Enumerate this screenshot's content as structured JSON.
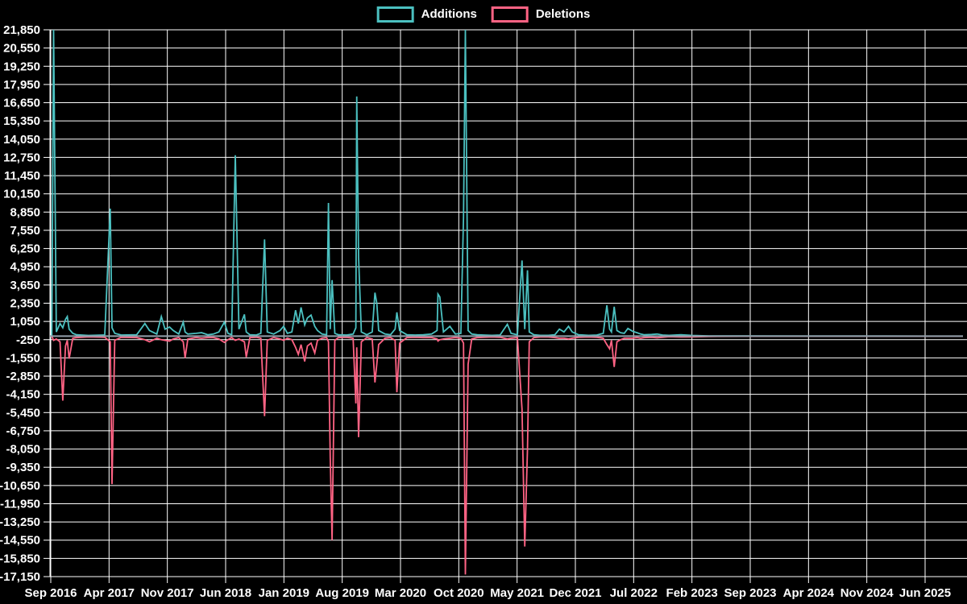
{
  "chart_data": {
    "type": "line",
    "legend": {
      "position": "top",
      "items": [
        {
          "label": "Additions",
          "color": "#4bc0c0"
        },
        {
          "label": "Deletions",
          "color": "#ff6384"
        }
      ]
    },
    "colors": {
      "background": "#000000",
      "grid": "#ffffff",
      "text": "#ffffff",
      "additions": "#4bc0c0",
      "deletions": "#ff6384",
      "zero_overlap": "#93a0ab"
    },
    "y_axis": {
      "min": -17150,
      "max": 21850,
      "step": 1300,
      "tick_labels": [
        "21,850",
        "20,550",
        "19,250",
        "17,950",
        "16,650",
        "15,350",
        "14,050",
        "12,750",
        "11,450",
        "10,150",
        "8,850",
        "7,550",
        "6,250",
        "4,950",
        "3,650",
        "2,350",
        "1,050",
        "-250",
        "-1,550",
        "-2,850",
        "-4,150",
        "-5,450",
        "-6,750",
        "-8,050",
        "-9,350",
        "-10,650",
        "-11,950",
        "-13,250",
        "-14,550",
        "-15,850",
        "-17,150"
      ]
    },
    "x_axis": {
      "tick_labels": [
        "Sep 2016",
        "Apr 2017",
        "Nov 2017",
        "Jun 2018",
        "Jan 2019",
        "Aug 2019",
        "Mar 2020",
        "Oct 2020",
        "May 2021",
        "Dec 2021",
        "Jul 2022",
        "Feb 2023",
        "Sep 2023",
        "Apr 2024",
        "Nov 2024",
        "Jun 2025"
      ]
    },
    "grid": true,
    "points_format": [
      "x_fraction_of_time_axis",
      "additions",
      "deletions"
    ],
    "points": [
      [
        0.002,
        0,
        0
      ],
      [
        0.004,
        21850,
        -300
      ],
      [
        0.007,
        300,
        -200
      ],
      [
        0.011,
        900,
        -400
      ],
      [
        0.014,
        600,
        -4600
      ],
      [
        0.017,
        1200,
        -700
      ],
      [
        0.019,
        1400,
        -300
      ],
      [
        0.021,
        500,
        -1600
      ],
      [
        0.025,
        200,
        -150
      ],
      [
        0.029,
        100,
        -100
      ],
      [
        0.042,
        50,
        -50
      ],
      [
        0.06,
        80,
        -80
      ],
      [
        0.066,
        9100,
        -400
      ],
      [
        0.068,
        600,
        -10550
      ],
      [
        0.071,
        200,
        -300
      ],
      [
        0.078,
        80,
        -80
      ],
      [
        0.095,
        100,
        -100
      ],
      [
        0.104,
        900,
        -250
      ],
      [
        0.109,
        400,
        -400
      ],
      [
        0.117,
        150,
        -150
      ],
      [
        0.122,
        1400,
        -250
      ],
      [
        0.126,
        500,
        -300
      ],
      [
        0.131,
        650,
        -350
      ],
      [
        0.135,
        400,
        -200
      ],
      [
        0.141,
        150,
        -100
      ],
      [
        0.146,
        1000,
        -400
      ],
      [
        0.148,
        300,
        -1550
      ],
      [
        0.151,
        150,
        -200
      ],
      [
        0.16,
        200,
        -100
      ],
      [
        0.166,
        250,
        -150
      ],
      [
        0.173,
        100,
        -100
      ],
      [
        0.179,
        150,
        -100
      ],
      [
        0.185,
        300,
        -200
      ],
      [
        0.191,
        1000,
        -450
      ],
      [
        0.195,
        200,
        -250
      ],
      [
        0.199,
        100,
        -100
      ],
      [
        0.203,
        12900,
        -300
      ],
      [
        0.207,
        500,
        -200
      ],
      [
        0.213,
        1550,
        -400
      ],
      [
        0.215,
        300,
        -1500
      ],
      [
        0.219,
        100,
        -100
      ],
      [
        0.226,
        80,
        -80
      ],
      [
        0.231,
        200,
        -150
      ],
      [
        0.235,
        6900,
        -5700
      ],
      [
        0.238,
        300,
        -300
      ],
      [
        0.245,
        150,
        -100
      ],
      [
        0.252,
        400,
        -200
      ],
      [
        0.256,
        700,
        -300
      ],
      [
        0.26,
        200,
        -150
      ],
      [
        0.265,
        300,
        -250
      ],
      [
        0.269,
        1850,
        -800
      ],
      [
        0.272,
        900,
        -1300
      ],
      [
        0.275,
        2050,
        -600
      ],
      [
        0.279,
        800,
        -1800
      ],
      [
        0.282,
        1300,
        -700
      ],
      [
        0.286,
        1500,
        -500
      ],
      [
        0.29,
        700,
        -1200
      ],
      [
        0.293,
        400,
        -300
      ],
      [
        0.298,
        150,
        -150
      ],
      [
        0.303,
        100,
        -100
      ],
      [
        0.305,
        9500,
        -400
      ],
      [
        0.307,
        500,
        -8600
      ],
      [
        0.309,
        4000,
        -14550
      ],
      [
        0.312,
        200,
        -300
      ],
      [
        0.316,
        100,
        -100
      ],
      [
        0.325,
        80,
        -80
      ],
      [
        0.332,
        150,
        -150
      ],
      [
        0.335,
        600,
        -4800
      ],
      [
        0.336,
        17100,
        -800
      ],
      [
        0.338,
        5600,
        -7200
      ],
      [
        0.341,
        300,
        -400
      ],
      [
        0.347,
        100,
        -100
      ],
      [
        0.353,
        300,
        -200
      ],
      [
        0.356,
        3100,
        -3300
      ],
      [
        0.358,
        2350,
        -2000
      ],
      [
        0.36,
        400,
        -600
      ],
      [
        0.367,
        150,
        -150
      ],
      [
        0.373,
        100,
        -100
      ],
      [
        0.378,
        500,
        -300
      ],
      [
        0.38,
        1700,
        -4000
      ],
      [
        0.383,
        400,
        -500
      ],
      [
        0.391,
        100,
        -100
      ],
      [
        0.4,
        80,
        -80
      ],
      [
        0.409,
        100,
        -100
      ],
      [
        0.418,
        150,
        -100
      ],
      [
        0.424,
        400,
        -200
      ],
      [
        0.425,
        3000,
        -350
      ],
      [
        0.427,
        2800,
        -250
      ],
      [
        0.431,
        300,
        -200
      ],
      [
        0.438,
        700,
        -150
      ],
      [
        0.444,
        150,
        -100
      ],
      [
        0.45,
        200,
        -150
      ],
      [
        0.453,
        8500,
        -500
      ],
      [
        0.455,
        21850,
        -17000
      ],
      [
        0.458,
        400,
        -2000
      ],
      [
        0.462,
        150,
        -200
      ],
      [
        0.468,
        100,
        -100
      ],
      [
        0.475,
        80,
        -80
      ],
      [
        0.484,
        60,
        -60
      ],
      [
        0.493,
        80,
        -80
      ],
      [
        0.501,
        850,
        -200
      ],
      [
        0.505,
        200,
        -150
      ],
      [
        0.512,
        100,
        -100
      ],
      [
        0.517,
        5400,
        -5200
      ],
      [
        0.52,
        500,
        -15000
      ],
      [
        0.523,
        4700,
        -8000
      ],
      [
        0.525,
        300,
        -400
      ],
      [
        0.53,
        100,
        -100
      ],
      [
        0.537,
        60,
        -60
      ],
      [
        0.546,
        60,
        -60
      ],
      [
        0.553,
        100,
        -100
      ],
      [
        0.558,
        500,
        -150
      ],
      [
        0.563,
        300,
        -150
      ],
      [
        0.568,
        700,
        -200
      ],
      [
        0.572,
        300,
        -150
      ],
      [
        0.579,
        100,
        -80
      ],
      [
        0.59,
        60,
        -60
      ],
      [
        0.599,
        80,
        -80
      ],
      [
        0.606,
        200,
        -150
      ],
      [
        0.61,
        2200,
        -600
      ],
      [
        0.613,
        500,
        -900
      ],
      [
        0.615,
        300,
        -300
      ],
      [
        0.618,
        2100,
        -2200
      ],
      [
        0.621,
        400,
        -400
      ],
      [
        0.625,
        250,
        -250
      ],
      [
        0.629,
        200,
        -150
      ],
      [
        0.633,
        550,
        -150
      ],
      [
        0.638,
        350,
        -150
      ],
      [
        0.643,
        250,
        -100
      ],
      [
        0.647,
        150,
        -150
      ],
      [
        0.651,
        100,
        -100
      ],
      [
        0.659,
        120,
        -80
      ],
      [
        0.665,
        150,
        -120
      ],
      [
        0.671,
        80,
        -80
      ],
      [
        0.678,
        60,
        -40
      ],
      [
        0.691,
        100,
        -60
      ],
      [
        0.704,
        50,
        -50
      ],
      [
        0.722,
        20,
        -20
      ],
      [
        0.757,
        10,
        -10
      ],
      [
        0.828,
        5,
        -5
      ],
      [
        0.916,
        5,
        -5
      ],
      [
        1.0,
        0,
        0
      ]
    ]
  }
}
